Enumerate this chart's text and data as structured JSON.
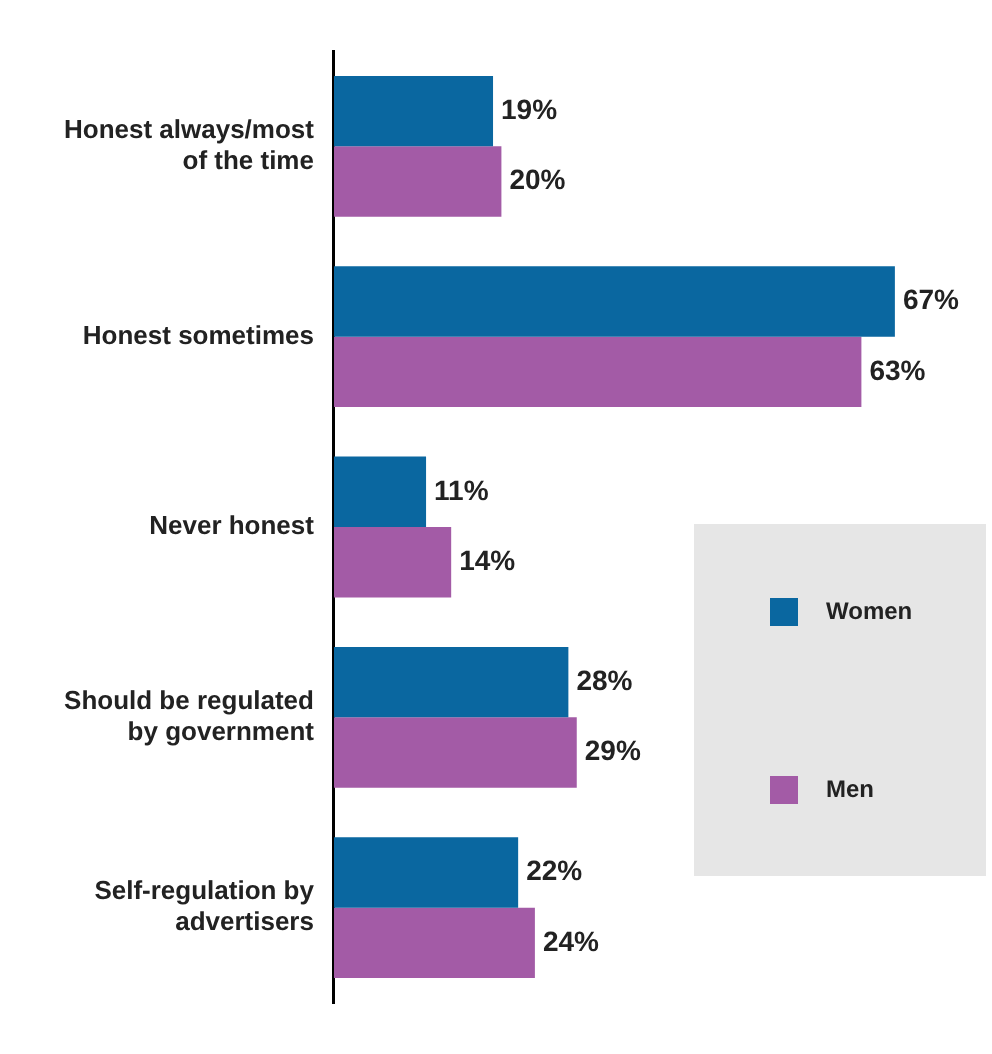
{
  "chart_data": {
    "type": "bar",
    "orientation": "horizontal",
    "categories": [
      "Honest always/most of the time",
      "Honest sometimes",
      "Never honest",
      "Should be regulated by government",
      "Self-regulation by advertisers"
    ],
    "series": [
      {
        "name": "Women",
        "color": "#0a67a0",
        "values": [
          19,
          67,
          11,
          28,
          22
        ],
        "value_labels": [
          "19%",
          "67%",
          "11%",
          "28%",
          "22%"
        ]
      },
      {
        "name": "Men",
        "color": "#a35ba6",
        "values": [
          20,
          63,
          14,
          29,
          24
        ],
        "value_labels": [
          "20%",
          "63%",
          "14%",
          "29%",
          "24%"
        ]
      }
    ],
    "tick_labels": "y",
    "grid": false,
    "legend": "right"
  }
}
